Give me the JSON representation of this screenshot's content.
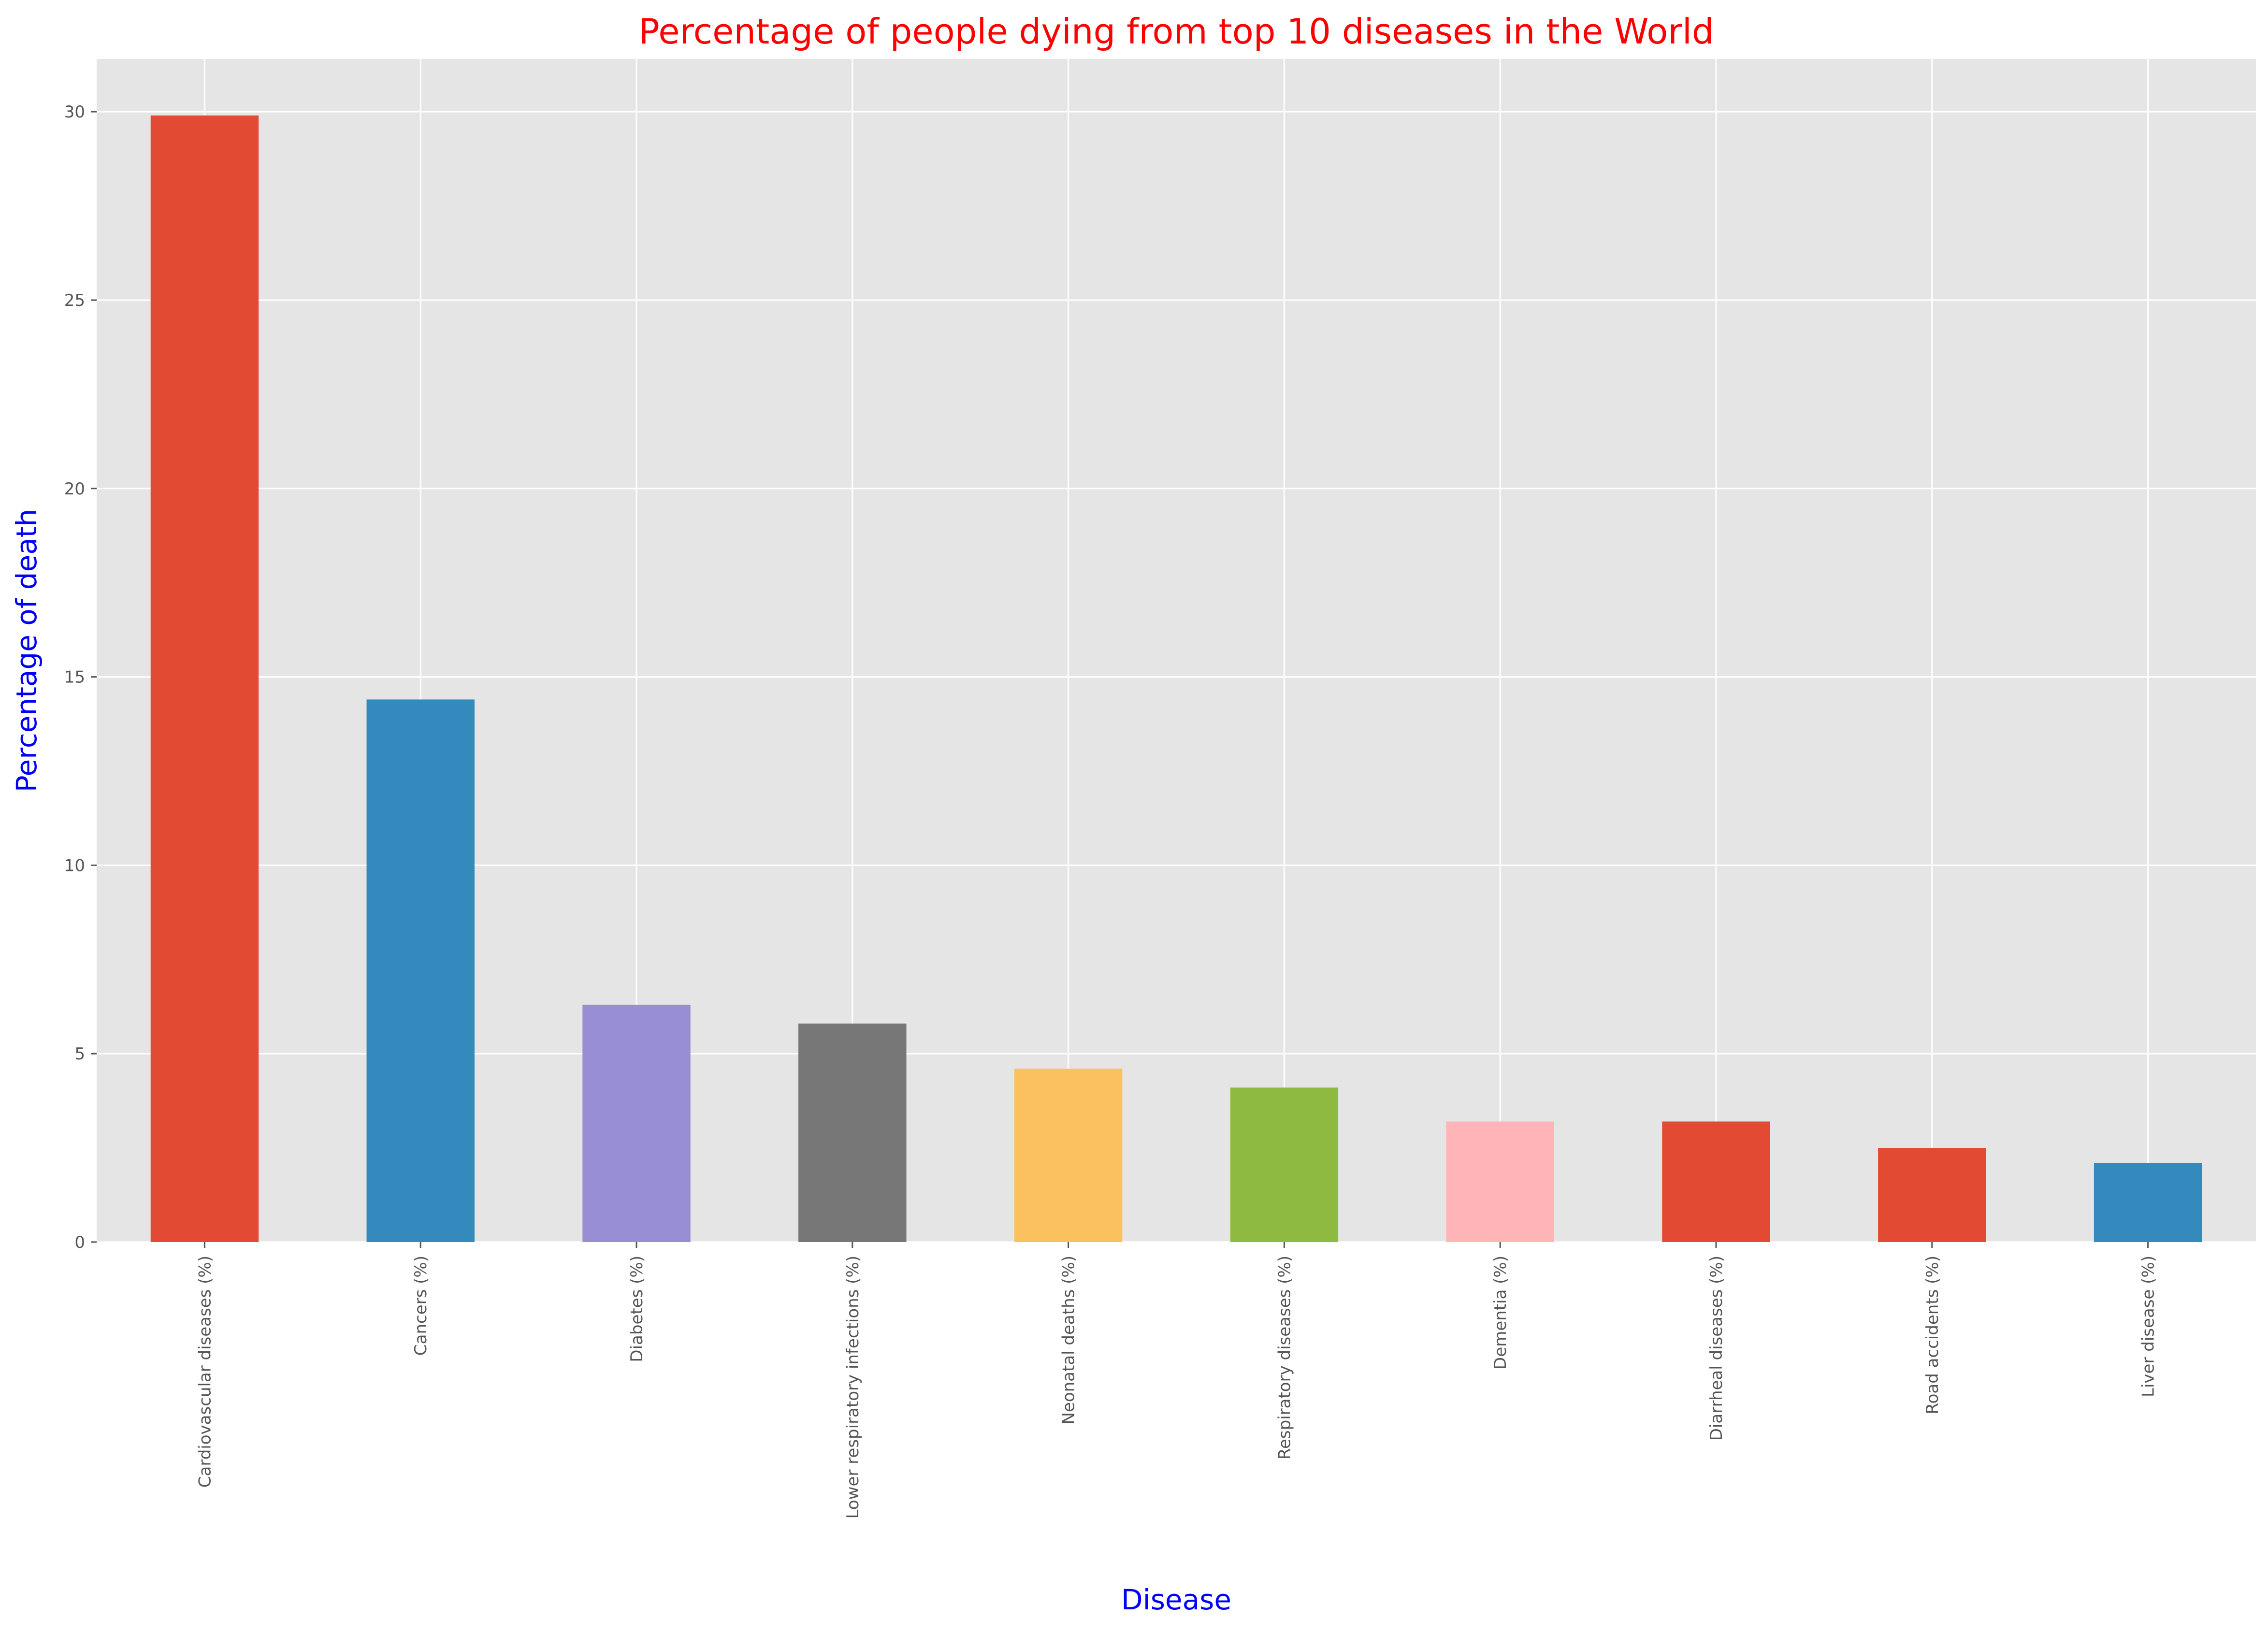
{
  "chart_data": {
    "type": "bar",
    "title": "Percentage of people dying from top 10 diseases in the World",
    "xlabel": "Disease",
    "ylabel": "Percentage of death",
    "categories": [
      "Cardiovascular diseases (%)",
      "Cancers (%)",
      "Diabetes (%)",
      "Lower respiratory infections (%)",
      "Neonatal deaths (%)",
      "Respiratory diseases (%)",
      "Dementia (%)",
      "Diarrheal diseases (%)",
      "Road accidents (%)",
      "Liver disease (%)"
    ],
    "values": [
      29.9,
      14.4,
      6.3,
      5.8,
      4.6,
      4.1,
      3.2,
      3.2,
      2.5,
      2.1
    ],
    "bar_colors": [
      "#E24A33",
      "#348ABD",
      "#988ED5",
      "#777777",
      "#FBC15E",
      "#8EBA42",
      "#FFB5B8",
      "#E24A33",
      "#E24A33",
      "#348ABD"
    ],
    "ylim": [
      0,
      31.4
    ],
    "yticks": [
      0,
      5,
      10,
      15,
      20,
      25,
      30
    ],
    "grid": true,
    "legend": false,
    "colors": {
      "title": "#ff0000",
      "axis_labels": "#0000ff",
      "plot_background": "#e5e5e5",
      "grid": "#ffffff",
      "tick_labels": "#555555"
    }
  }
}
